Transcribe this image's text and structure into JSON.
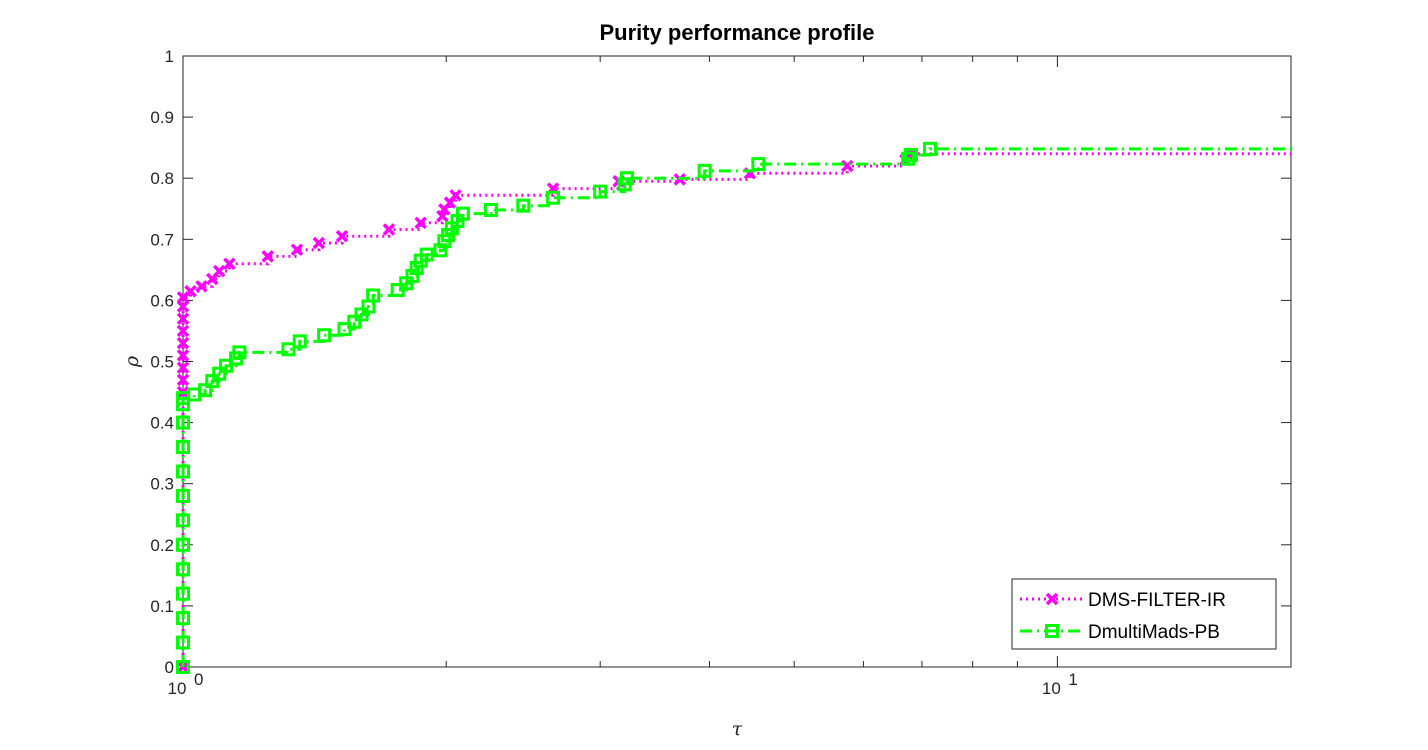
{
  "chart_data": {
    "type": "line",
    "title": "Purity performance profile",
    "xlabel": "τ",
    "ylabel": "ρ",
    "xscale": "log",
    "xlim": [
      1,
      18.5
    ],
    "ylim": [
      0,
      1
    ],
    "x_ticks": [
      {
        "value": 1,
        "base": "10",
        "exp": "0"
      },
      {
        "value": 10,
        "base": "10",
        "exp": "1"
      }
    ],
    "x_minor_ticks": [
      2,
      3,
      4,
      5,
      6,
      7,
      8,
      9
    ],
    "y_ticks": [
      0,
      0.1,
      0.2,
      0.3,
      0.4,
      0.5,
      0.6,
      0.7,
      0.8,
      0.9,
      1
    ],
    "y_tick_labels": [
      "0",
      "0.1",
      "0.2",
      "0.3",
      "0.4",
      "0.5",
      "0.6",
      "0.7",
      "0.8",
      "0.9",
      "1"
    ],
    "legend_position": "bottom-right",
    "series": [
      {
        "name": "DMS-FILTER-IR",
        "color": "#ff00ff",
        "line_style": "dotted",
        "marker": "x",
        "points": [
          [
            1.0,
            0.0
          ],
          [
            1.0,
            0.45
          ],
          [
            1.0,
            0.47
          ],
          [
            1.0,
            0.49
          ],
          [
            1.0,
            0.51
          ],
          [
            1.0,
            0.53
          ],
          [
            1.0,
            0.55
          ],
          [
            1.0,
            0.57
          ],
          [
            1.0,
            0.59
          ],
          [
            1.0,
            0.605
          ],
          [
            1.02,
            0.615
          ],
          [
            1.05,
            0.623
          ],
          [
            1.08,
            0.635
          ],
          [
            1.1,
            0.648
          ],
          [
            1.13,
            0.66
          ],
          [
            1.25,
            0.672
          ],
          [
            1.35,
            0.683
          ],
          [
            1.43,
            0.694
          ],
          [
            1.52,
            0.705
          ],
          [
            1.72,
            0.716
          ],
          [
            1.87,
            0.727
          ],
          [
            1.98,
            0.738
          ],
          [
            1.99,
            0.749
          ],
          [
            2.02,
            0.76
          ],
          [
            2.05,
            0.772
          ],
          [
            2.65,
            0.783
          ],
          [
            3.15,
            0.795
          ],
          [
            3.7,
            0.798
          ],
          [
            4.45,
            0.808
          ],
          [
            5.75,
            0.82
          ],
          [
            6.7,
            0.83
          ],
          [
            6.8,
            0.84
          ]
        ],
        "end": [
          18.5,
          0.84
        ]
      },
      {
        "name": "DmultiMads-PB",
        "color": "#00ff00",
        "line_style": "dashdot",
        "marker": "square",
        "points": [
          [
            1.0,
            0.0
          ],
          [
            1.0,
            0.04
          ],
          [
            1.0,
            0.08
          ],
          [
            1.0,
            0.12
          ],
          [
            1.0,
            0.16
          ],
          [
            1.0,
            0.2
          ],
          [
            1.0,
            0.24
          ],
          [
            1.0,
            0.28
          ],
          [
            1.0,
            0.32
          ],
          [
            1.0,
            0.36
          ],
          [
            1.0,
            0.4
          ],
          [
            1.0,
            0.43
          ],
          [
            1.0,
            0.44
          ],
          [
            1.03,
            0.446
          ],
          [
            1.06,
            0.453
          ],
          [
            1.08,
            0.468
          ],
          [
            1.1,
            0.48
          ],
          [
            1.12,
            0.493
          ],
          [
            1.15,
            0.505
          ],
          [
            1.16,
            0.515
          ],
          [
            1.32,
            0.52
          ],
          [
            1.36,
            0.533
          ],
          [
            1.45,
            0.543
          ],
          [
            1.53,
            0.553
          ],
          [
            1.57,
            0.565
          ],
          [
            1.6,
            0.577
          ],
          [
            1.63,
            0.59
          ],
          [
            1.65,
            0.608
          ],
          [
            1.76,
            0.617
          ],
          [
            1.8,
            0.628
          ],
          [
            1.83,
            0.64
          ],
          [
            1.85,
            0.653
          ],
          [
            1.87,
            0.665
          ],
          [
            1.9,
            0.675
          ],
          [
            1.97,
            0.682
          ],
          [
            1.99,
            0.697
          ],
          [
            2.01,
            0.707
          ],
          [
            2.03,
            0.718
          ],
          [
            2.06,
            0.73
          ],
          [
            2.09,
            0.742
          ],
          [
            2.25,
            0.748
          ],
          [
            2.45,
            0.755
          ],
          [
            2.65,
            0.768
          ],
          [
            3.0,
            0.778
          ],
          [
            3.2,
            0.79
          ],
          [
            3.22,
            0.8
          ],
          [
            3.95,
            0.812
          ],
          [
            4.55,
            0.823
          ],
          [
            6.75,
            0.832
          ],
          [
            6.8,
            0.838
          ],
          [
            7.15,
            0.848
          ]
        ],
        "end": [
          18.5,
          0.848
        ]
      }
    ]
  }
}
